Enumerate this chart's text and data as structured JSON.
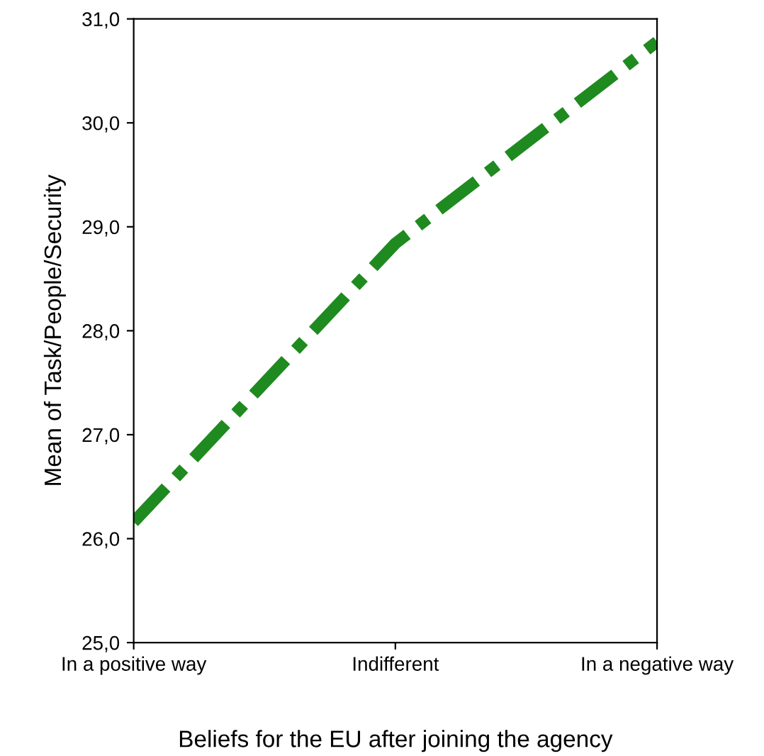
{
  "chart_data": {
    "type": "line",
    "xlabel": "Beliefs for the EU after joining the agency",
    "ylabel": "Mean of Task/People/Security",
    "categories": [
      "In a positive way",
      "Indifferent",
      "In a negative way"
    ],
    "series": [
      {
        "color": "#1f8a1f",
        "values": [
          26.16,
          28.84,
          30.78
        ]
      }
    ],
    "ylim": [
      25,
      31
    ],
    "yticks": [
      {
        "value": 25,
        "label": "25,0"
      },
      {
        "value": 26,
        "label": "26,0"
      },
      {
        "value": 27,
        "label": "27,0"
      },
      {
        "value": 28,
        "label": "28,0"
      },
      {
        "value": 29,
        "label": "29,0"
      },
      {
        "value": 30,
        "label": "30,0"
      },
      {
        "value": 31,
        "label": "31,0"
      }
    ],
    "grid": false,
    "legend": false,
    "marker": "none",
    "line_style": "dashdot"
  }
}
